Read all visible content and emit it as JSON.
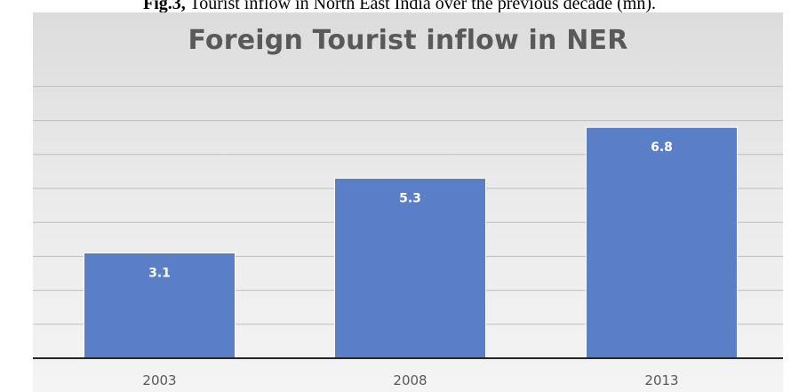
{
  "caption": {
    "label": "Fig.3,",
    "text": " Tourist inflow in North East India over the previous decade (mn)."
  },
  "chart_data": {
    "type": "bar",
    "title": "Foreign Tourist inflow in NER",
    "categories": [
      "2003",
      "2008",
      "2013"
    ],
    "values": [
      3.1,
      5.3,
      6.8
    ],
    "data_labels": [
      "3.1",
      "5.3",
      "6.8"
    ],
    "xlabel": "",
    "ylabel": "",
    "ylim": [
      0,
      8
    ],
    "grid": true,
    "legend": "none",
    "bar_color": "#5b7fc7",
    "label_color": "#ffffff"
  }
}
